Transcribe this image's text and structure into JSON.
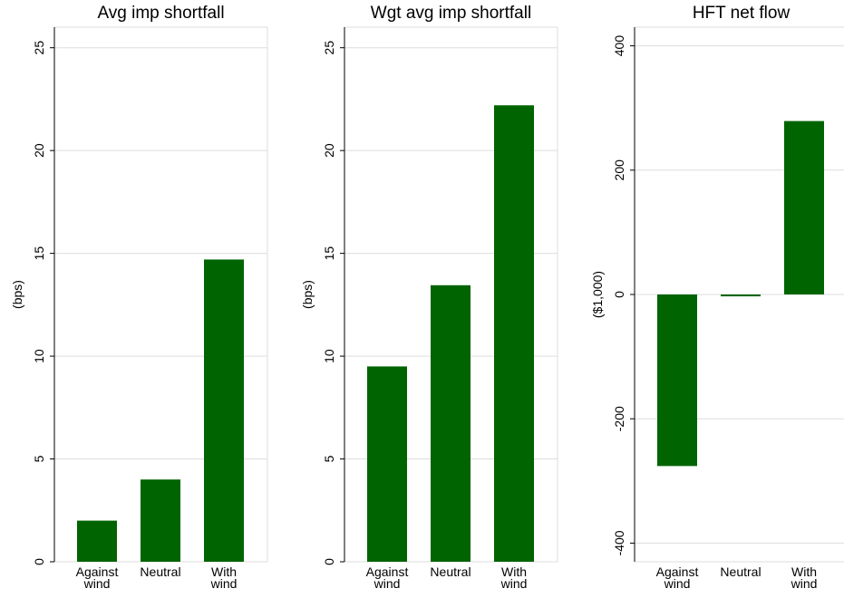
{
  "chart_data": [
    {
      "type": "bar",
      "title": "Avg imp shortfall",
      "ylabel": "(bps)",
      "categories": [
        "Against wind",
        "Neutral",
        "With wind"
      ],
      "values": [
        2.0,
        4.0,
        14.7
      ],
      "color": "#006400",
      "ylim": [
        0,
        26
      ],
      "yticks": [
        0,
        5,
        10,
        15,
        20,
        25
      ],
      "grid": true
    },
    {
      "type": "bar",
      "title": "Wgt avg imp shortfall",
      "ylabel": "(bps)",
      "categories": [
        "Against wind",
        "Neutral",
        "With wind"
      ],
      "values": [
        9.5,
        13.45,
        22.2
      ],
      "color": "#006400",
      "ylim": [
        0,
        26
      ],
      "yticks": [
        0,
        5,
        10,
        15,
        20,
        25
      ],
      "grid": true
    },
    {
      "type": "bar",
      "title": "HFT net flow",
      "ylabel": "($1,000)",
      "categories": [
        "Against wind",
        "Neutral",
        "With wind"
      ],
      "values": [
        -276,
        -3,
        279
      ],
      "color": "#006400",
      "ylim": [
        -430,
        430
      ],
      "yticks": [
        -400,
        -200,
        0,
        200,
        400
      ],
      "grid": true
    }
  ]
}
